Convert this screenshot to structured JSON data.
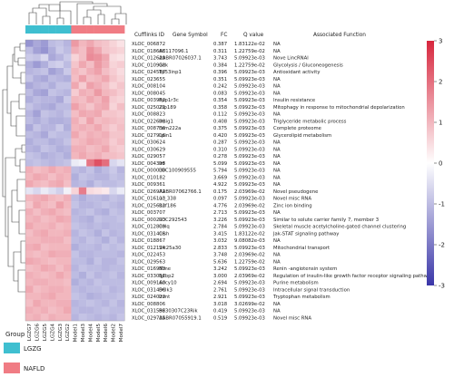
{
  "chart_data": {
    "type": "heatmap",
    "column_groups": [
      {
        "name": "LGZG",
        "color": "#3fbfd0",
        "columns": [
          "LGZG7",
          "LGZG6",
          "LGZG5",
          "LGZG4",
          "LGZG3",
          "LGZG2"
        ]
      },
      {
        "name": "NAFLD",
        "color": "#f07c84",
        "columns": [
          "Model1",
          "Model3",
          "Model4",
          "Model5",
          "Model6",
          "Model2",
          "Model7"
        ]
      }
    ],
    "columns": [
      "LGZG7",
      "LGZG6",
      "LGZG5",
      "LGZG4",
      "LGZG3",
      "LGZG2",
      "Model1",
      "Model3",
      "Model4",
      "Model5",
      "Model6",
      "Model2",
      "Model7"
    ],
    "table_headers": [
      "Cufflinks ID",
      "Gene Symbol",
      "FC",
      "Q value",
      "Associated Function"
    ],
    "rows": [
      {
        "id": "XLOC_006872",
        "symbol": "",
        "fc": "0.387",
        "q": "1.83122e-02",
        "func": "NA",
        "values": [
          -1.6,
          -1.3,
          -1.5,
          -1.0,
          -0.9,
          -1.1,
          1.4,
          1.0,
          1.2,
          0.9,
          0.8,
          0.6,
          0.4
        ]
      },
      {
        "id": "XLOC_018668",
        "symbol": "AC117096.1",
        "fc": "0.311",
        "q": "1.22759e-02",
        "func": "NA",
        "values": [
          -1.0,
          -1.4,
          -1.6,
          -1.2,
          -0.8,
          -1.0,
          1.1,
          0.9,
          1.5,
          1.2,
          0.8,
          0.7,
          0.6
        ]
      },
      {
        "id": "XLOC_012629",
        "symbol": "AABR07026037.1",
        "fc": "3.743",
        "q": "5.09923e-03",
        "func": "Nove LincRNAl",
        "values": [
          -0.8,
          -0.9,
          -0.6,
          -1.3,
          -1.1,
          -0.8,
          0.6,
          0.9,
          1.6,
          1.5,
          1.2,
          0.5,
          0.4
        ]
      },
      {
        "id": "XLOC_010918",
        "symbol": "Gck",
        "fc": "0.384",
        "q": "1.22759e-02",
        "func": "Glycolysis / Gluconeogenesis",
        "values": [
          -1.2,
          -1.5,
          -1.2,
          -0.8,
          -0.7,
          -1.0,
          0.8,
          1.2,
          0.9,
          1.4,
          1.1,
          0.6,
          0.7
        ]
      },
      {
        "id": "XLOC_024587",
        "symbol": "Tp53inp1",
        "fc": "0.396",
        "q": "5.09923e-03",
        "func": "Antioxidant activity",
        "values": [
          -1.1,
          -1.0,
          -0.9,
          -1.4,
          -1.2,
          -0.8,
          1.0,
          0.8,
          1.1,
          1.3,
          0.9,
          0.7,
          0.5
        ]
      },
      {
        "id": "XLOC_023655",
        "symbol": "",
        "fc": "0.351",
        "q": "5.09923e-03",
        "func": "NA",
        "values": [
          -0.9,
          -1.2,
          -1.3,
          -1.0,
          -1.1,
          -1.2,
          0.9,
          1.3,
          0.9,
          1.0,
          1.2,
          0.8,
          0.6
        ]
      },
      {
        "id": "XLOC_008104",
        "symbol": "",
        "fc": "0.242",
        "q": "5.09923e-03",
        "func": "NA",
        "values": [
          -1.3,
          -1.1,
          -1.0,
          -1.2,
          -0.9,
          -0.9,
          1.2,
          0.7,
          1.3,
          1.1,
          0.9,
          0.6,
          0.8
        ]
      },
      {
        "id": "XLOC_008045",
        "symbol": "",
        "fc": "0.083",
        "q": "5.09923e-03",
        "func": "NA",
        "values": [
          -1.0,
          -1.3,
          -1.4,
          -0.9,
          -1.0,
          -1.1,
          0.7,
          1.1,
          1.0,
          1.4,
          1.0,
          0.9,
          0.7
        ]
      },
      {
        "id": "XLOC_003952",
        "symbol": "Ppp1r3c",
        "fc": "0.354",
        "q": "5.09923e-03",
        "func": "Insulin resistance",
        "values": [
          -1.2,
          -1.0,
          -1.1,
          -1.1,
          -1.3,
          -0.8,
          1.0,
          0.9,
          1.2,
          1.0,
          1.3,
          0.7,
          0.6
        ]
      },
      {
        "id": "XLOC_025072",
        "symbol": "Zfp189",
        "fc": "0.358",
        "q": "5.09923e-03",
        "func": "Mitophagy in response to mitochondrial depolarization",
        "values": [
          -0.9,
          -1.1,
          -1.2,
          -1.3,
          -1.0,
          -1.0,
          1.3,
          1.0,
          0.8,
          1.1,
          1.2,
          0.6,
          0.9
        ]
      },
      {
        "id": "XLOC_008823",
        "symbol": "",
        "fc": "0.112",
        "q": "5.09923e-03",
        "func": "NA",
        "values": [
          -1.1,
          -1.4,
          -0.9,
          -1.0,
          -1.1,
          -0.9,
          0.9,
          1.2,
          1.1,
          1.2,
          0.8,
          0.8,
          0.7
        ]
      },
      {
        "id": "XLOC_022608",
        "symbol": "Insig1",
        "fc": "0.408",
        "q": "5.09923e-03",
        "func": "Triglyceride metabolic process",
        "values": [
          -1.0,
          -1.2,
          -1.0,
          -1.2,
          -1.2,
          -1.1,
          1.1,
          0.8,
          1.3,
          0.9,
          1.0,
          0.9,
          0.8
        ]
      },
      {
        "id": "XLOC_008736",
        "symbol": "Fam222a",
        "fc": "0.375",
        "q": "5.09923e-03",
        "func": "Complete proteome",
        "values": [
          -1.3,
          -0.9,
          -1.1,
          -1.1,
          -0.8,
          -1.2,
          1.0,
          1.1,
          1.0,
          1.2,
          0.9,
          0.7,
          0.9
        ]
      },
      {
        "id": "XLOC_027916",
        "symbol": "Lpin1",
        "fc": "0.420",
        "q": "5.09923e-03",
        "func": "Glycerolipid metabolism",
        "values": [
          -1.0,
          -1.1,
          -1.3,
          -0.9,
          -1.0,
          -1.0,
          1.2,
          0.9,
          1.1,
          1.0,
          1.1,
          0.8,
          0.8
        ]
      },
      {
        "id": "XLOC_030624",
        "symbol": "",
        "fc": "0.287",
        "q": "5.09923e-03",
        "func": "NA",
        "values": [
          -1.2,
          -1.0,
          -1.0,
          -1.2,
          -1.1,
          -0.9,
          0.9,
          1.0,
          1.2,
          1.1,
          1.0,
          0.7,
          0.9
        ]
      },
      {
        "id": "XLOC_030629",
        "symbol": "",
        "fc": "0.310",
        "q": "5.09923e-03",
        "func": "NA",
        "values": [
          -1.1,
          -1.2,
          -0.9,
          -1.0,
          -1.2,
          -1.1,
          1.1,
          1.1,
          0.9,
          1.0,
          1.2,
          0.8,
          0.7
        ]
      },
      {
        "id": "XLOC_029057",
        "symbol": "",
        "fc": "0.278",
        "q": "5.09923e-03",
        "func": "NA",
        "values": [
          -0.9,
          -1.0,
          -1.2,
          -1.1,
          -1.0,
          -1.2,
          1.0,
          1.2,
          1.0,
          1.1,
          0.9,
          0.9,
          0.8
        ]
      },
      {
        "id": "XLOC_004395",
        "symbol": "Inf",
        "fc": "5.099",
        "q": "5.09923e-03",
        "func": "NA",
        "values": [
          -1.0,
          -0.9,
          -1.0,
          -1.1,
          -1.0,
          -0.9,
          -0.3,
          -0.2,
          1.9,
          2.4,
          2.0,
          -0.6,
          -0.4
        ]
      },
      {
        "id": "XLOC_000038",
        "symbol": "LOC100909555",
        "fc": "5.794",
        "q": "5.09923e-03",
        "func": "NA",
        "values": [
          1.1,
          0.9,
          1.0,
          1.2,
          1.0,
          1.1,
          -1.0,
          -1.1,
          -0.9,
          -1.2,
          -1.0,
          -0.8,
          -1.1
        ]
      },
      {
        "id": "XLOC_010182",
        "symbol": "",
        "fc": "3.669",
        "q": "5.09923e-03",
        "func": "NA",
        "values": [
          1.0,
          1.2,
          1.1,
          0.9,
          1.1,
          1.0,
          -1.2,
          -0.9,
          -1.0,
          -1.1,
          -1.1,
          -0.9,
          -1.0
        ]
      },
      {
        "id": "XLOC_009361",
        "symbol": "",
        "fc": "4.922",
        "q": "5.09923e-03",
        "func": "NA",
        "values": [
          1.2,
          1.0,
          0.9,
          1.1,
          1.2,
          0.9,
          -1.1,
          -1.0,
          -1.2,
          -0.9,
          -1.0,
          -1.0,
          -0.9
        ]
      },
      {
        "id": "XLOC_026972",
        "symbol": "AABR07062766.1",
        "fc": "0.175",
        "q": "2.03969e-02",
        "func": "Novel pseudogene",
        "values": [
          -0.4,
          -0.6,
          -0.3,
          -0.5,
          -0.7,
          -0.2,
          0.6,
          1.8,
          0.5,
          0.4,
          0.3,
          -0.6,
          -0.3
        ]
      },
      {
        "id": "XLOC_016113",
        "symbol": "uc_338",
        "fc": "0.097",
        "q": "5.09923e-03",
        "func": "Novel misc RNA",
        "values": [
          1.0,
          1.1,
          1.2,
          1.0,
          0.9,
          1.1,
          -1.0,
          -1.2,
          -1.0,
          -1.0,
          -1.1,
          -0.9,
          -1.0
        ]
      },
      {
        "id": "XLOC_025612",
        "symbol": "Rnf186",
        "fc": "4.776",
        "q": "2.03969e-02",
        "func": "Zinc ion binding",
        "values": [
          0.8,
          1.2,
          1.0,
          0.9,
          1.3,
          1.0,
          -0.9,
          -1.1,
          -1.1,
          -1.0,
          -0.9,
          -1.0,
          -1.1
        ]
      },
      {
        "id": "XLOC_003707",
        "symbol": "",
        "fc": "2.713",
        "q": "5.09923e-03",
        "func": "NA",
        "values": [
          1.1,
          0.9,
          1.1,
          1.2,
          1.0,
          0.9,
          -1.1,
          -1.0,
          -0.9,
          -1.1,
          -1.2,
          -0.9,
          -1.0
        ]
      },
      {
        "id": "XLOC_000293",
        "symbol": "LOC292543",
        "fc": "3.226",
        "q": "5.09923e-03",
        "func": "Similar to solute carrier family 7, member 3",
        "values": [
          1.0,
          1.1,
          0.9,
          1.0,
          1.2,
          1.1,
          -1.0,
          -1.1,
          -1.2,
          -0.9,
          -1.0,
          -1.0,
          -0.9
        ]
      },
      {
        "id": "XLOC_012839",
        "symbol": "Colq",
        "fc": "2.784",
        "q": "5.09923e-03",
        "func": "Skeletal muscle acetylcholine-gated channel clustering",
        "values": [
          1.2,
          1.0,
          1.0,
          1.1,
          0.9,
          1.0,
          -0.9,
          -1.0,
          -1.1,
          -1.0,
          -1.1,
          -1.0,
          -1.0
        ]
      },
      {
        "id": "XLOC_031416",
        "symbol": "Cish",
        "fc": "3.415",
        "q": "1.83122e-02",
        "func": "Jak-STAT signaling pathway",
        "values": [
          0.9,
          1.1,
          1.2,
          1.0,
          1.0,
          1.1,
          -1.1,
          -0.9,
          -1.0,
          -1.2,
          -0.9,
          -1.1,
          -1.0
        ]
      },
      {
        "id": "XLOC_018867",
        "symbol": "",
        "fc": "3.032",
        "q": "9.08082e-03",
        "func": "NA",
        "values": [
          1.0,
          1.0,
          1.1,
          1.1,
          1.1,
          0.9,
          -1.0,
          -1.1,
          -0.9,
          -1.0,
          -1.2,
          -0.9,
          -1.1
        ]
      },
      {
        "id": "XLOC_012124",
        "symbol": "Slc25a30",
        "fc": "2.833",
        "q": "5.09923e-03",
        "func": "Mitochondrial transport",
        "values": [
          1.1,
          1.2,
          0.9,
          1.0,
          1.0,
          1.0,
          -1.2,
          -1.0,
          -1.0,
          -1.1,
          -0.9,
          -1.0,
          -0.9
        ]
      },
      {
        "id": "XLOC_022453",
        "symbol": "",
        "fc": "3.748",
        "q": "2.03969e-02",
        "func": "NA",
        "values": [
          1.0,
          0.9,
          1.0,
          1.2,
          1.1,
          1.1,
          -0.9,
          -1.1,
          -1.1,
          -1.0,
          -1.0,
          -1.0,
          -1.1
        ]
      },
      {
        "id": "XLOC_029563",
        "symbol": "",
        "fc": "5.636",
        "q": "1.22759e-02",
        "func": "NA",
        "values": [
          1.2,
          1.1,
          1.0,
          0.9,
          1.0,
          1.0,
          -1.0,
          -1.0,
          -1.2,
          -0.9,
          -1.1,
          -1.1,
          -0.9
        ]
      },
      {
        "id": "XLOC_016953",
        "symbol": "Mme",
        "fc": "3.242",
        "q": "5.09923e-03",
        "func": "Renin -angiotensin system",
        "values": [
          0.9,
          1.0,
          1.2,
          1.1,
          0.9,
          1.1,
          -1.1,
          -0.9,
          -1.0,
          -1.0,
          -1.1,
          -1.0,
          -1.0
        ]
      },
      {
        "id": "XLOC_033051",
        "symbol": "Igfbp2",
        "fc": "3.000",
        "q": "2.03969e-02",
        "func": "Regulation of insulin-like growth factor receptor signaling pathway",
        "values": [
          1.1,
          1.0,
          0.9,
          1.0,
          1.2,
          1.0,
          -1.0,
          -1.2,
          -0.9,
          -1.1,
          -1.0,
          -0.9,
          -1.1
        ]
      },
      {
        "id": "XLOC_009160",
        "symbol": "Adcy10",
        "fc": "2.694",
        "q": "5.09923e-03",
        "func": "Purine metabolism",
        "values": [
          1.0,
          1.1,
          1.1,
          1.0,
          1.0,
          0.9,
          -1.2,
          -1.0,
          -1.1,
          -0.9,
          -1.0,
          -1.0,
          -1.0
        ]
      },
      {
        "id": "XLOC_031496",
        "symbol": "Dclk3",
        "fc": "2.761",
        "q": "5.09923e-03",
        "func": "Intracellular signal transduction",
        "values": [
          1.2,
          0.9,
          1.0,
          1.1,
          1.1,
          1.0,
          -1.0,
          -1.1,
          -1.0,
          -1.0,
          -0.9,
          -1.1,
          -1.0
        ]
      },
      {
        "id": "XLOC_024023",
        "symbol": "Inmt",
        "fc": "2.921",
        "q": "5.09923e-03",
        "func": "Tryptophan metabolism",
        "values": [
          1.0,
          1.0,
          1.1,
          1.2,
          1.0,
          1.0,
          -0.9,
          -1.0,
          -1.2,
          -1.1,
          -1.0,
          -1.0,
          -0.9
        ]
      },
      {
        "id": "XLOC_008806",
        "symbol": "",
        "fc": "3.018",
        "q": "3.02699e-02",
        "func": "NA",
        "values": [
          0.9,
          1.2,
          1.0,
          1.0,
          1.1,
          1.1,
          -1.1,
          -1.0,
          -0.9,
          -1.0,
          -1.1,
          -0.9,
          -1.1
        ]
      },
      {
        "id": "XLOC_031596",
        "symbol": "B230307C23Rik",
        "fc": "0.419",
        "q": "5.09923e-03",
        "func": "NA",
        "values": [
          1.1,
          1.0,
          1.1,
          0.9,
          1.0,
          1.2,
          -1.0,
          -1.1,
          -1.1,
          -1.0,
          -0.9,
          -1.0,
          -1.0
        ]
      },
      {
        "id": "XLOC_029735",
        "symbol": "AABR07055919.1",
        "fc": "0.519",
        "q": "5.09923e-03",
        "func": "Novel misc RNA",
        "values": [
          1.0,
          1.1,
          0.9,
          1.1,
          1.0,
          1.0,
          -1.1,
          -0.9,
          -1.0,
          -1.1,
          -1.0,
          -1.1,
          -0.9
        ]
      }
    ],
    "color_scale": {
      "min": -3,
      "max": 3,
      "low": "#3a36a8",
      "mid": "#ffffff",
      "high": "#d7263d",
      "ticks": [
        3,
        2,
        1,
        0,
        -1,
        -2,
        -3
      ]
    },
    "legend": {
      "title": "Group",
      "entries": [
        {
          "name": "LGZG",
          "color": "#3fbfd0"
        },
        {
          "name": "NAFLD",
          "color": "#f07c84"
        }
      ]
    }
  }
}
